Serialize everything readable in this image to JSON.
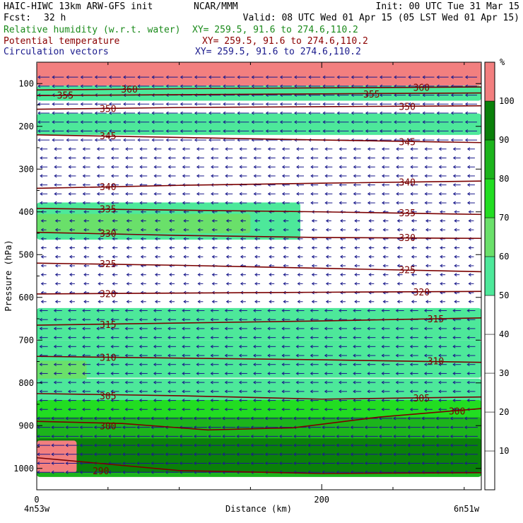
{
  "header": {
    "model": "HAIC-HIWC 13km ARW-GFS init",
    "org": "NCAR/MMM",
    "init": "Init: 00 UTC Tue 31 Mar 15",
    "fcst_label": "Fcst:",
    "fcst_value": "32 h",
    "valid": "Valid: 08 UTC Wed 01 Apr 15 (05 LST Wed 01 Apr 15)",
    "fields": [
      {
        "name": "Relative humidity (w.r.t. water)",
        "xy": "XY= 259.5, 91.6 to 274.6,110.2",
        "color": "#1a8a1a"
      },
      {
        "name": "Potential temperature",
        "xy": "XY= 259.5, 91.6 to 274.6,110.2",
        "color": "#8b0000"
      },
      {
        "name": "Circulation vectors",
        "xy": "XY= 259.5, 91.6 to 274.6,110.2",
        "color": "#1a1a8c"
      }
    ]
  },
  "chart_data": {
    "type": "heatmap",
    "title": "",
    "xlabel": "Distance (km)",
    "ylabel": "Pressure (hPa)",
    "xlim": [
      0,
      312
    ],
    "ylim": [
      1050,
      50
    ],
    "x_ticks": [
      0,
      200
    ],
    "x_minor_step": 50,
    "y_ticks": [
      100,
      200,
      300,
      400,
      500,
      600,
      700,
      800,
      900,
      1000
    ],
    "left_endpoint_label": "4n53w",
    "right_endpoint_label": "6n51w",
    "colorbar": {
      "unit": "%",
      "levels": [
        10,
        20,
        30,
        40,
        50,
        60,
        70,
        80,
        90,
        100
      ],
      "colors": [
        "#ffffff",
        "#ffffff",
        "#ffffff",
        "#ffffff",
        "#ffffff",
        "#4de89a",
        "#6ae06a",
        "#22dd22",
        "#1cb41c",
        "#0a800a",
        "#f27f7f"
      ]
    },
    "rh_bands": [
      {
        "x": [
          0,
          312
        ],
        "p_top": 50,
        "p_bot": 105,
        "fill": ">100"
      },
      {
        "x": [
          0,
          312
        ],
        "p_top": 105,
        "p_bot": 140,
        "fill": "50-60"
      },
      {
        "x": [
          0,
          312
        ],
        "p_top": 170,
        "p_bot": 220,
        "fill": "50-60"
      },
      {
        "x": [
          0,
          185
        ],
        "p_top": 378,
        "p_bot": 465,
        "fill": "50-60"
      },
      {
        "x": [
          0,
          150
        ],
        "p_top": 405,
        "p_bot": 450,
        "fill": "60-70"
      },
      {
        "x": [
          0,
          312
        ],
        "p_top": 625,
        "p_bot": 700,
        "fill": "50-60"
      },
      {
        "x": [
          0,
          312
        ],
        "p_top": 700,
        "p_bot": 788,
        "fill": "50-60"
      },
      {
        "x": [
          0,
          35
        ],
        "p_top": 748,
        "p_bot": 850,
        "fill": "60-70"
      },
      {
        "x": [
          0,
          312
        ],
        "p_top": 790,
        "p_bot": 870,
        "fill": "50-60"
      },
      {
        "x": [
          0,
          312
        ],
        "p_top": 840,
        "p_bot": 908,
        "fill": "70-80"
      },
      {
        "x": [
          0,
          312
        ],
        "p_top": 880,
        "p_bot": 1020,
        "fill": "80-90"
      },
      {
        "x": [
          0,
          312
        ],
        "p_top": 930,
        "p_bot": 1010,
        "fill": "90-100"
      },
      {
        "x": [
          0,
          28
        ],
        "p_top": 935,
        "p_bot": 1010,
        "fill": ">100"
      }
    ],
    "theta_contours": [
      {
        "level": 290,
        "x": [
          0,
          100,
          200,
          312
        ],
        "p": [
          975,
          1005,
          1012,
          1010
        ],
        "labels": [
          {
            "x": 45,
            "p": 1005
          }
        ]
      },
      {
        "level": 300,
        "x": [
          0,
          60,
          120,
          180,
          240,
          312
        ],
        "p": [
          890,
          895,
          910,
          905,
          880,
          860
        ],
        "labels": [
          {
            "x": 50,
            "p": 900
          },
          {
            "x": 295,
            "p": 866
          }
        ]
      },
      {
        "level": 305,
        "x": [
          0,
          100,
          200,
          312
        ],
        "p": [
          825,
          830,
          838,
          833
        ],
        "labels": [
          {
            "x": 50,
            "p": 830
          },
          {
            "x": 270,
            "p": 835
          }
        ]
      },
      {
        "level": 310,
        "x": [
          0,
          100,
          200,
          312
        ],
        "p": [
          738,
          742,
          746,
          752
        ],
        "labels": [
          {
            "x": 50,
            "p": 740
          },
          {
            "x": 280,
            "p": 748
          }
        ]
      },
      {
        "level": 315,
        "x": [
          0,
          100,
          200,
          312
        ],
        "p": [
          665,
          660,
          655,
          648
        ],
        "labels": [
          {
            "x": 50,
            "p": 663
          },
          {
            "x": 280,
            "p": 650
          }
        ]
      },
      {
        "level": 320,
        "x": [
          0,
          100,
          200,
          312
        ],
        "p": [
          592,
          590,
          588,
          586
        ],
        "labels": [
          {
            "x": 50,
            "p": 591
          },
          {
            "x": 270,
            "p": 587
          }
        ]
      },
      {
        "level": 325,
        "x": [
          0,
          100,
          200,
          312
        ],
        "p": [
          520,
          525,
          532,
          540
        ],
        "labels": [
          {
            "x": 50,
            "p": 521
          },
          {
            "x": 260,
            "p": 535
          }
        ]
      },
      {
        "level": 330,
        "x": [
          0,
          100,
          200,
          312
        ],
        "p": [
          448,
          455,
          460,
          462
        ],
        "labels": [
          {
            "x": 50,
            "p": 450
          },
          {
            "x": 260,
            "p": 460
          }
        ]
      },
      {
        "level": 335,
        "x": [
          0,
          100,
          200,
          312
        ],
        "p": [
          392,
          396,
          400,
          406
        ],
        "labels": [
          {
            "x": 50,
            "p": 393
          },
          {
            "x": 260,
            "p": 402
          }
        ]
      },
      {
        "level": 340,
        "x": [
          0,
          100,
          200,
          312
        ],
        "p": [
          345,
          338,
          333,
          328
        ],
        "labels": [
          {
            "x": 50,
            "p": 341
          },
          {
            "x": 260,
            "p": 330
          }
        ]
      },
      {
        "level": 345,
        "x": [
          0,
          100,
          200,
          312
        ],
        "p": [
          220,
          226,
          232,
          238
        ],
        "labels": [
          {
            "x": 50,
            "p": 222
          },
          {
            "x": 260,
            "p": 236
          }
        ]
      },
      {
        "level": 350,
        "x": [
          0,
          100,
          200,
          312
        ],
        "p": [
          160,
          156,
          154,
          152
        ],
        "labels": [
          {
            "x": 50,
            "p": 158
          },
          {
            "x": 260,
            "p": 153
          }
        ]
      },
      {
        "level": 355,
        "x": [
          0,
          100,
          200,
          312
        ],
        "p": [
          128,
          126,
          124,
          122
        ],
        "labels": [
          {
            "x": 20,
            "p": 127
          },
          {
            "x": 235,
            "p": 124
          }
        ]
      },
      {
        "level": 360,
        "x": [
          0,
          100,
          200,
          312
        ],
        "p": [
          115,
          112,
          110,
          108
        ],
        "labels": [
          {
            "x": 65,
            "p": 113
          },
          {
            "x": 270,
            "p": 109
          }
        ]
      }
    ],
    "vectors": {
      "x_start": 5,
      "x_step": 10,
      "p_start": 85,
      "p_step": 21,
      "direction": "from east (westward)",
      "layers": [
        {
          "p_range": [
            60,
            250
          ],
          "length": 0.8
        },
        {
          "p_range": [
            250,
            390
          ],
          "length": 0.5
        },
        {
          "p_range": [
            390,
            620
          ],
          "length": 0.35
        },
        {
          "p_range": [
            620,
            870
          ],
          "length": 0.55
        },
        {
          "p_range": [
            870,
            1020
          ],
          "length": 0.9
        }
      ]
    }
  }
}
